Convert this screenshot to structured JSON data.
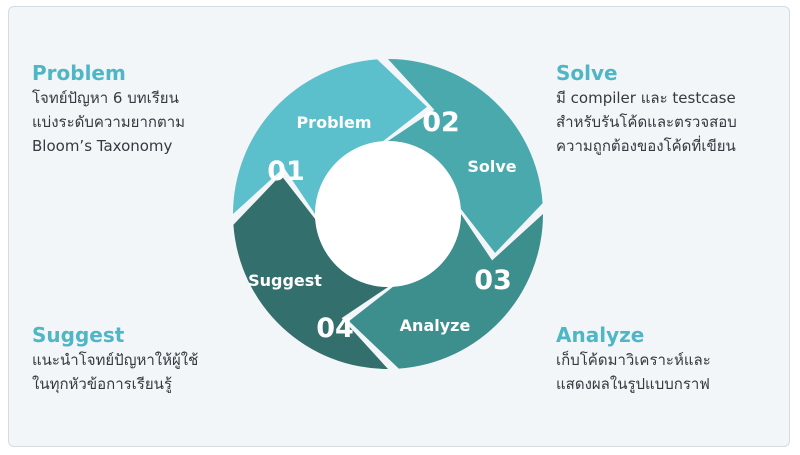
{
  "blocks": {
    "problem": {
      "title": "Problem",
      "lines": [
        "โจทย์ปัญหา 6 บทเรียน",
        "แบ่งระดับความยากตาม",
        "Bloom’s Taxonomy"
      ]
    },
    "solve": {
      "title": "Solve",
      "lines": [
        "มี compiler และ testcase",
        "สำหรับรันโค้ดและตรวจสอบ",
        "ความถูกต้องของโค้ดที่เขียน"
      ]
    },
    "suggest": {
      "title": "Suggest",
      "lines": [
        "แนะนำโจทย์ปัญหาให้ผู้ใช้",
        "ในทุกหัวข้อการเรียนรู้"
      ]
    },
    "analyze": {
      "title": "Analyze",
      "lines": [
        "เก็บโค้ดมาวิเคราะห์และ",
        "แสดงผลในรูปแบบกราฟ"
      ]
    }
  },
  "cycle": {
    "segments": [
      {
        "number": "01",
        "label": "Problem",
        "color": "#5bbfcc"
      },
      {
        "number": "02",
        "label": "Solve",
        "color": "#4aa9ad"
      },
      {
        "number": "03",
        "label": "Analyze",
        "color": "#3d8f8e"
      },
      {
        "number": "04",
        "label": "Suggest",
        "color": "#336f6c"
      }
    ]
  },
  "colors": {
    "heading": "#4fb6c6",
    "text": "#333a40",
    "background": "#f3f6f8"
  }
}
